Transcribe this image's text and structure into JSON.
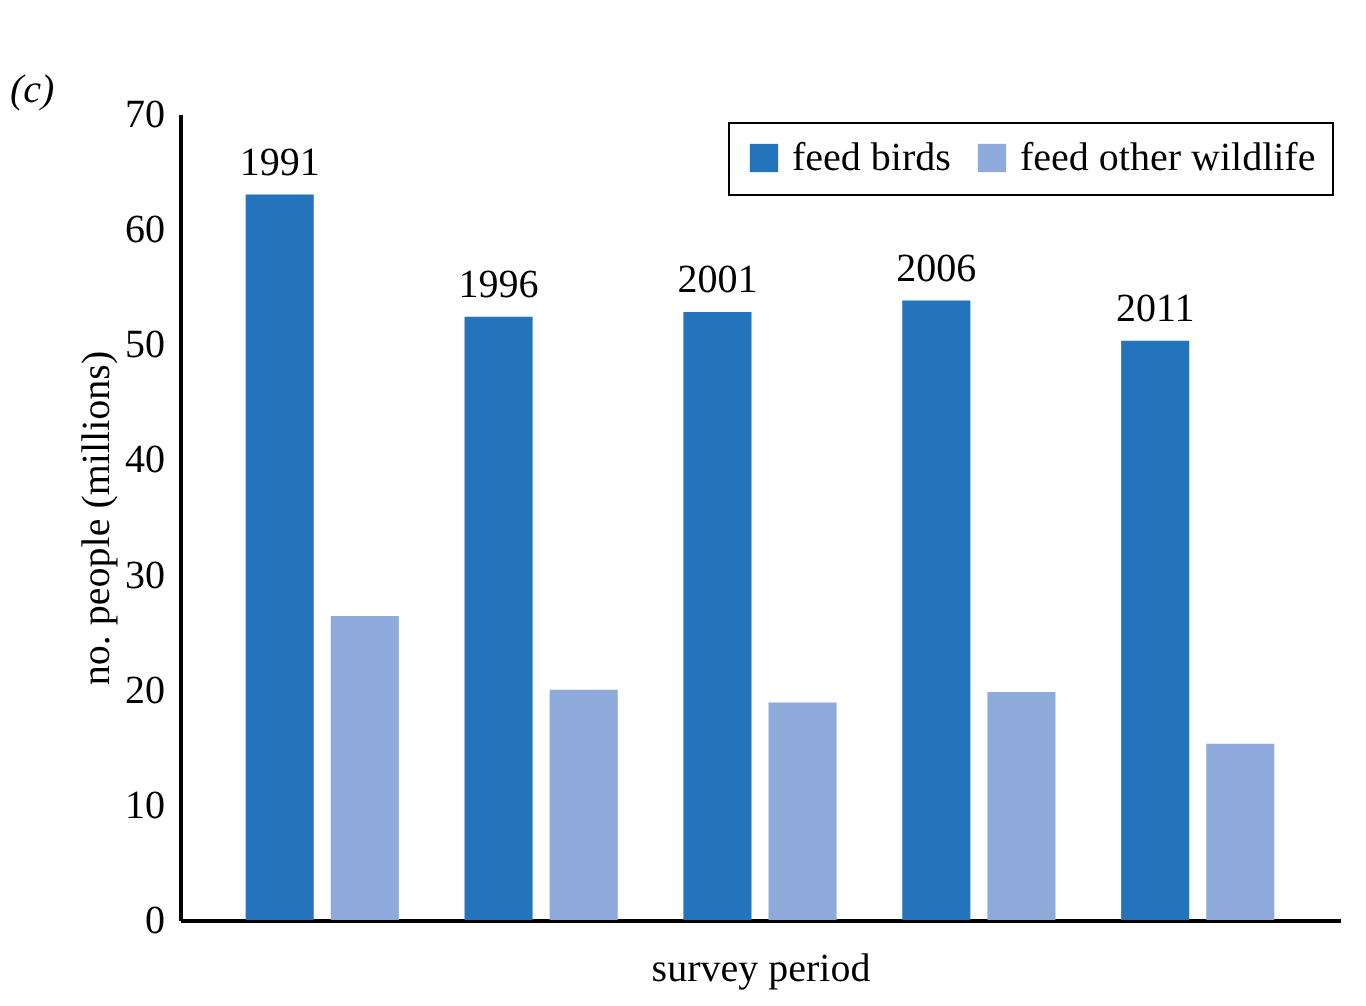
{
  "chart_data": {
    "type": "bar",
    "xlabel": "survey period",
    "ylabel": "no. people (millions)",
    "annotations": [
      "(c)"
    ],
    "categories": [
      "1991",
      "1996",
      "2001",
      "2006",
      "2011"
    ],
    "series": [
      {
        "name": "feed birds",
        "color": "#2474bc",
        "values": [
          63.0,
          52.4,
          52.8,
          53.8,
          50.3
        ]
      },
      {
        "name": "feed other wildlife",
        "color": "#8eaadb",
        "values": [
          26.4,
          20.0,
          18.9,
          19.8,
          15.3
        ]
      }
    ],
    "ylim": [
      0,
      70
    ],
    "yticks": [
      0,
      10,
      20,
      30,
      40,
      50,
      60,
      70
    ],
    "grid": false,
    "legend": "top right",
    "tick_labels": "y"
  }
}
